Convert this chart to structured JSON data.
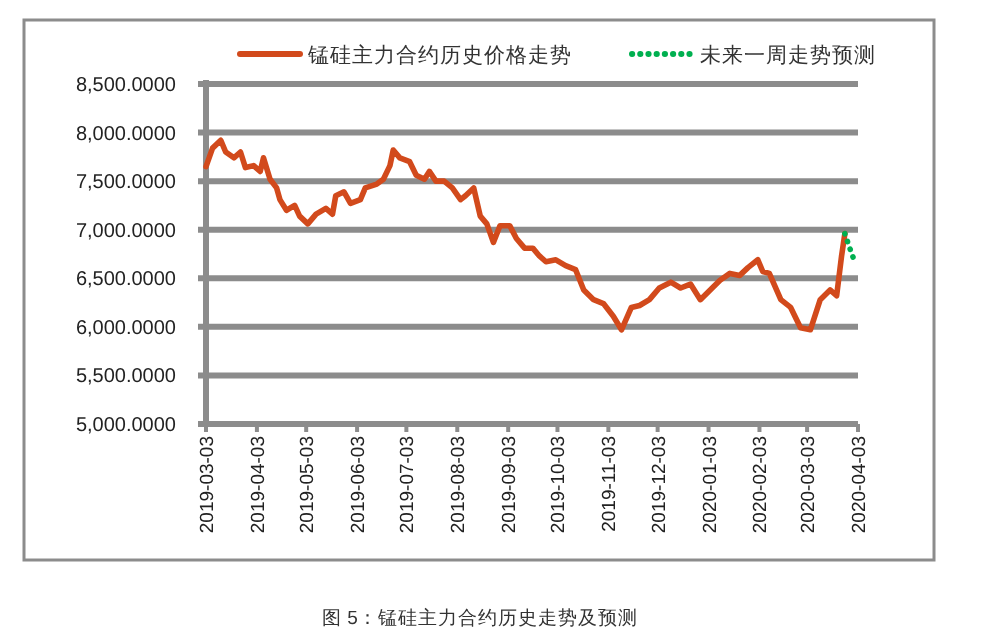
{
  "chart_data": {
    "type": "line",
    "legend": "top",
    "grid": "y",
    "ylim": [
      5000,
      8500
    ],
    "yticks": [
      {
        "value": 5000,
        "label": "5,000.0000"
      },
      {
        "value": 5500,
        "label": "5,500.0000"
      },
      {
        "value": 6000,
        "label": "6,000.0000"
      },
      {
        "value": 6500,
        "label": "6,500.0000"
      },
      {
        "value": 7000,
        "label": "7,000.0000"
      },
      {
        "value": 7500,
        "label": "7,500.0000"
      },
      {
        "value": 8000,
        "label": "8,000.0000"
      },
      {
        "value": 8500,
        "label": "8,500.0000"
      }
    ],
    "xlim": [
      "2019-03-03",
      "2020-04-03"
    ],
    "xticks": [
      "2019-03-03",
      "2019-04-03",
      "2019-05-03",
      "2019-06-03",
      "2019-07-03",
      "2019-08-03",
      "2019-09-03",
      "2019-10-03",
      "2019-11-03",
      "2019-12-03",
      "2020-01-03",
      "2020-02-03",
      "2020-03-03",
      "2020-04-03"
    ],
    "annotations": [
      "图 5：锰硅主力合约历史走势及预测"
    ],
    "series": [
      {
        "name": "锰硅主力合约历史价格走势",
        "color": "#d24a1c",
        "line_style": "solid",
        "x": [
          "2019-03-03",
          "2019-03-07",
          "2019-03-12",
          "2019-03-15",
          "2019-03-20",
          "2019-03-24",
          "2019-03-27",
          "2019-04-01",
          "2019-04-05",
          "2019-04-07",
          "2019-04-11",
          "2019-04-15",
          "2019-04-17",
          "2019-04-21",
          "2019-04-26",
          "2019-04-29",
          "2019-05-04",
          "2019-05-09",
          "2019-05-15",
          "2019-05-19",
          "2019-05-21",
          "2019-05-26",
          "2019-05-30",
          "2019-06-05",
          "2019-06-08",
          "2019-06-15",
          "2019-06-19",
          "2019-06-23",
          "2019-06-25",
          "2019-06-29",
          "2019-07-05",
          "2019-07-09",
          "2019-07-14",
          "2019-07-17",
          "2019-07-21",
          "2019-07-26",
          "2019-07-31",
          "2019-08-05",
          "2019-08-08",
          "2019-08-13",
          "2019-08-17",
          "2019-08-21",
          "2019-08-25",
          "2019-08-29",
          "2019-09-04",
          "2019-09-08",
          "2019-09-13",
          "2019-09-18",
          "2019-09-22",
          "2019-09-26",
          "2019-10-02",
          "2019-10-08",
          "2019-10-14",
          "2019-10-19",
          "2019-10-25",
          "2019-10-31",
          "2019-11-06",
          "2019-11-11",
          "2019-11-17",
          "2019-11-22",
          "2019-11-28",
          "2019-12-04",
          "2019-12-11",
          "2019-12-17",
          "2019-12-23",
          "2019-12-29",
          "2020-01-04",
          "2020-01-10",
          "2020-01-16",
          "2020-01-22",
          "2020-01-27",
          "2020-02-02",
          "2020-02-05",
          "2020-02-09",
          "2020-02-16",
          "2020-02-22",
          "2020-02-28",
          "2020-03-05",
          "2020-03-11",
          "2020-03-17",
          "2020-03-21",
          "2020-03-24",
          "2020-03-26"
        ],
        "values": [
          7650,
          7840,
          7920,
          7800,
          7740,
          7800,
          7640,
          7660,
          7600,
          7740,
          7520,
          7430,
          7310,
          7200,
          7250,
          7140,
          7060,
          7160,
          7220,
          7160,
          7350,
          7390,
          7270,
          7310,
          7430,
          7470,
          7520,
          7660,
          7820,
          7740,
          7700,
          7560,
          7520,
          7600,
          7500,
          7500,
          7430,
          7310,
          7350,
          7430,
          7140,
          7060,
          6870,
          7040,
          7040,
          6910,
          6810,
          6810,
          6730,
          6670,
          6690,
          6630,
          6590,
          6380,
          6280,
          6240,
          6110,
          5970,
          6200,
          6220,
          6280,
          6400,
          6460,
          6400,
          6440,
          6280,
          6380,
          6480,
          6550,
          6530,
          6610,
          6690,
          6570,
          6550,
          6280,
          6200,
          5990,
          5970,
          6280,
          6380,
          6320,
          6730,
          6960
        ]
      },
      {
        "name": "未来一周走势预测",
        "color": "#00b050",
        "line_style": "dotted",
        "x": [
          "2020-03-26",
          "2020-03-29",
          "2020-04-01"
        ],
        "values": [
          6960,
          6810,
          6670
        ]
      }
    ]
  }
}
